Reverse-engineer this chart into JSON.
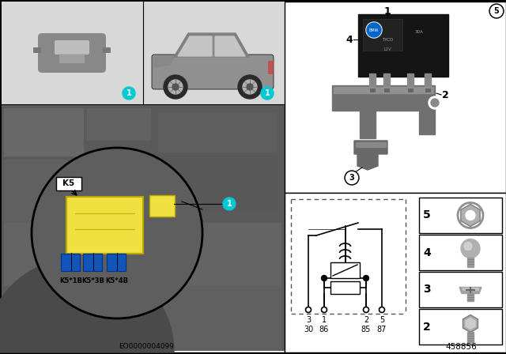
{
  "bg_color": "#ffffff",
  "cyan_color": "#00c8d4",
  "yellow_color": "#f0e040",
  "panel_bg_top": "#dcdcdc",
  "panel_bg_bottom": "#6e6e6e",
  "right_bg": "#f5f5f5",
  "border_color": "#000000",
  "diagram_number_left": "EO0000004099",
  "diagram_number_right": "458856",
  "connector_labels": [
    "K5*1B",
    "K5*3B",
    "K5*4B"
  ],
  "k5_label": "K5",
  "pin_labels_top": [
    "3",
    "1",
    "2",
    "5"
  ],
  "pin_labels_bottom": [
    "30",
    "86",
    "85",
    "87"
  ]
}
